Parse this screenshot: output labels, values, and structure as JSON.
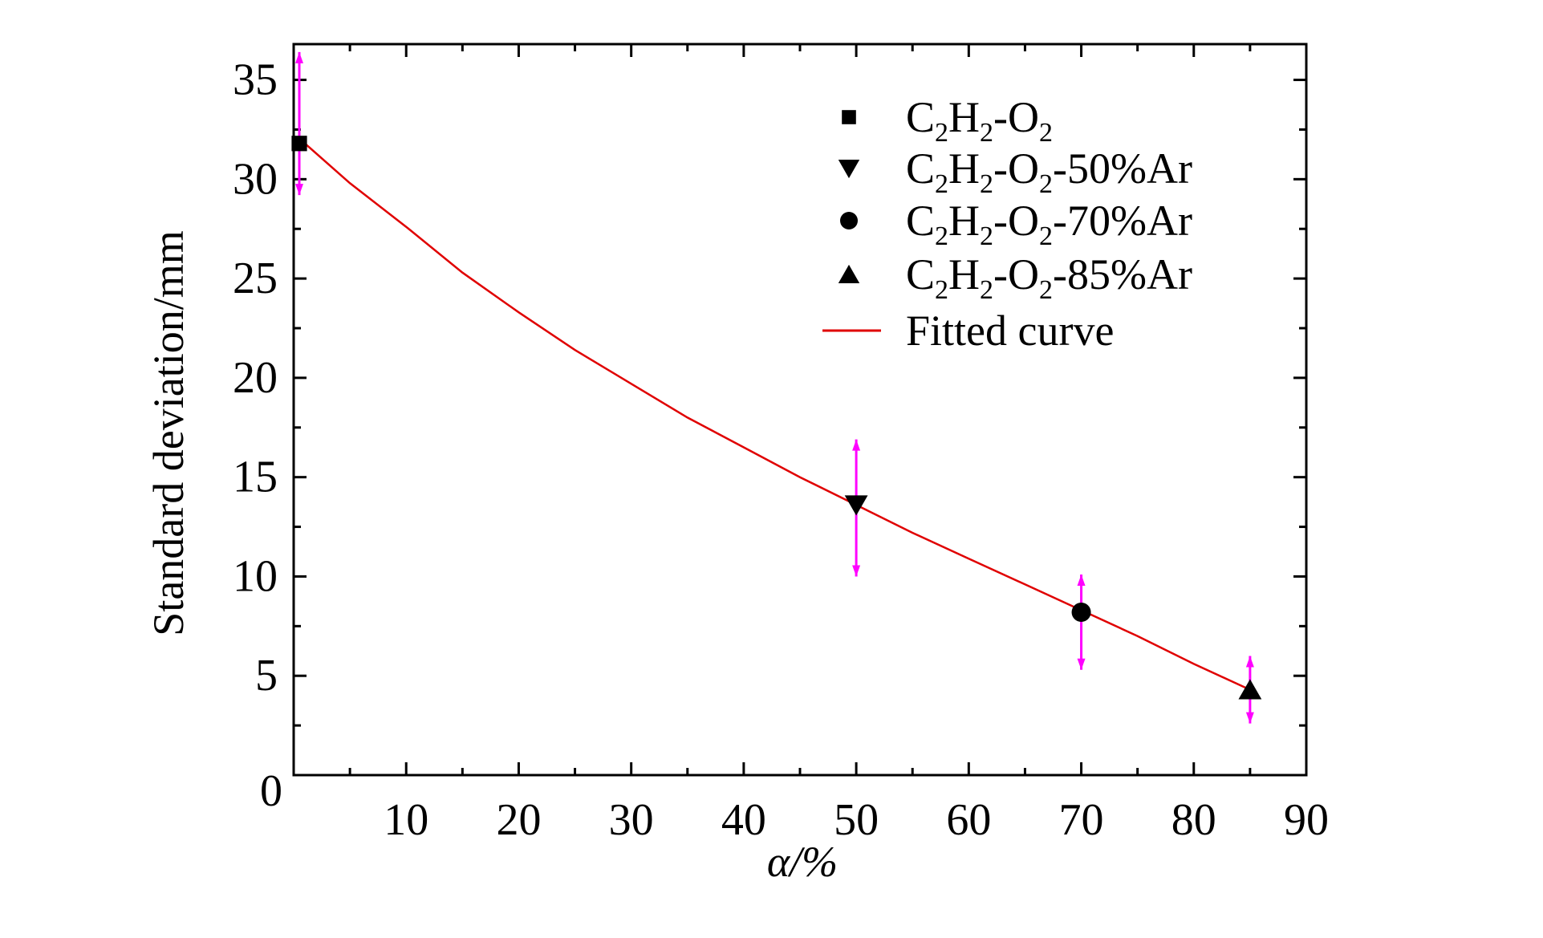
{
  "chart_data": {
    "type": "scatter",
    "xlabel": "α/%",
    "ylabel": "Standard deviation/mm",
    "xlim": [
      0,
      90
    ],
    "ylim": [
      0,
      36.8
    ],
    "x_ticks": [
      10,
      20,
      30,
      40,
      50,
      60,
      70,
      80,
      90
    ],
    "y_ticks": [
      0,
      5,
      10,
      15,
      20,
      25,
      30,
      35
    ],
    "x_minor_step": 5,
    "y_minor_step": 2.5,
    "grid": false,
    "legend_position": "top-right",
    "series": [
      {
        "name": "C2H2-O2",
        "label_parts": [
          [
            "C",
            0
          ],
          [
            "2",
            1
          ],
          [
            "H",
            0
          ],
          [
            "2",
            1
          ],
          [
            "-O",
            0
          ],
          [
            "2",
            1
          ]
        ],
        "marker": "square",
        "x": [
          0.5
        ],
        "y": [
          31.8
        ],
        "err_low": [
          29.2
        ],
        "err_high": [
          36.4
        ]
      },
      {
        "name": "C2H2-O2-50%Ar",
        "label_parts": [
          [
            "C",
            0
          ],
          [
            "2",
            1
          ],
          [
            "H",
            0
          ],
          [
            "2",
            1
          ],
          [
            "-O",
            0
          ],
          [
            "2",
            1
          ],
          [
            "-50%Ar",
            0
          ]
        ],
        "marker": "triangle-down",
        "x": [
          50
        ],
        "y": [
          13.6
        ],
        "err_low": [
          10.0
        ],
        "err_high": [
          16.9
        ]
      },
      {
        "name": "C2H2-O2-70%Ar",
        "label_parts": [
          [
            "C",
            0
          ],
          [
            "2",
            1
          ],
          [
            "H",
            0
          ],
          [
            "2",
            1
          ],
          [
            "-O",
            0
          ],
          [
            "2",
            1
          ],
          [
            "-70%Ar",
            0
          ]
        ],
        "marker": "circle",
        "x": [
          70
        ],
        "y": [
          8.2
        ],
        "err_low": [
          5.3
        ],
        "err_high": [
          10.1
        ]
      },
      {
        "name": "C2H2-O2-85%Ar",
        "label_parts": [
          [
            "C",
            0
          ],
          [
            "2",
            1
          ],
          [
            "H",
            0
          ],
          [
            "2",
            1
          ],
          [
            "-O",
            0
          ],
          [
            "2",
            1
          ],
          [
            "-85%Ar",
            0
          ]
        ],
        "marker": "triangle-up",
        "x": [
          85
        ],
        "y": [
          4.3
        ],
        "err_low": [
          2.6
        ],
        "err_high": [
          6.0
        ]
      }
    ],
    "fitted_curve": {
      "name": "Fitted curve",
      "color": "#e00000",
      "x": [
        1,
        5,
        10,
        15,
        20,
        25,
        30,
        35,
        40,
        45,
        50,
        55,
        60,
        65,
        70,
        75,
        80,
        85
      ],
      "y": [
        31.8,
        29.8,
        27.6,
        25.3,
        23.3,
        21.4,
        19.7,
        18.0,
        16.5,
        15.0,
        13.6,
        12.2,
        10.9,
        9.6,
        8.3,
        7.0,
        5.6,
        4.3
      ]
    },
    "error_bar_color": "#ff00ff",
    "marker_color": "#000000"
  }
}
